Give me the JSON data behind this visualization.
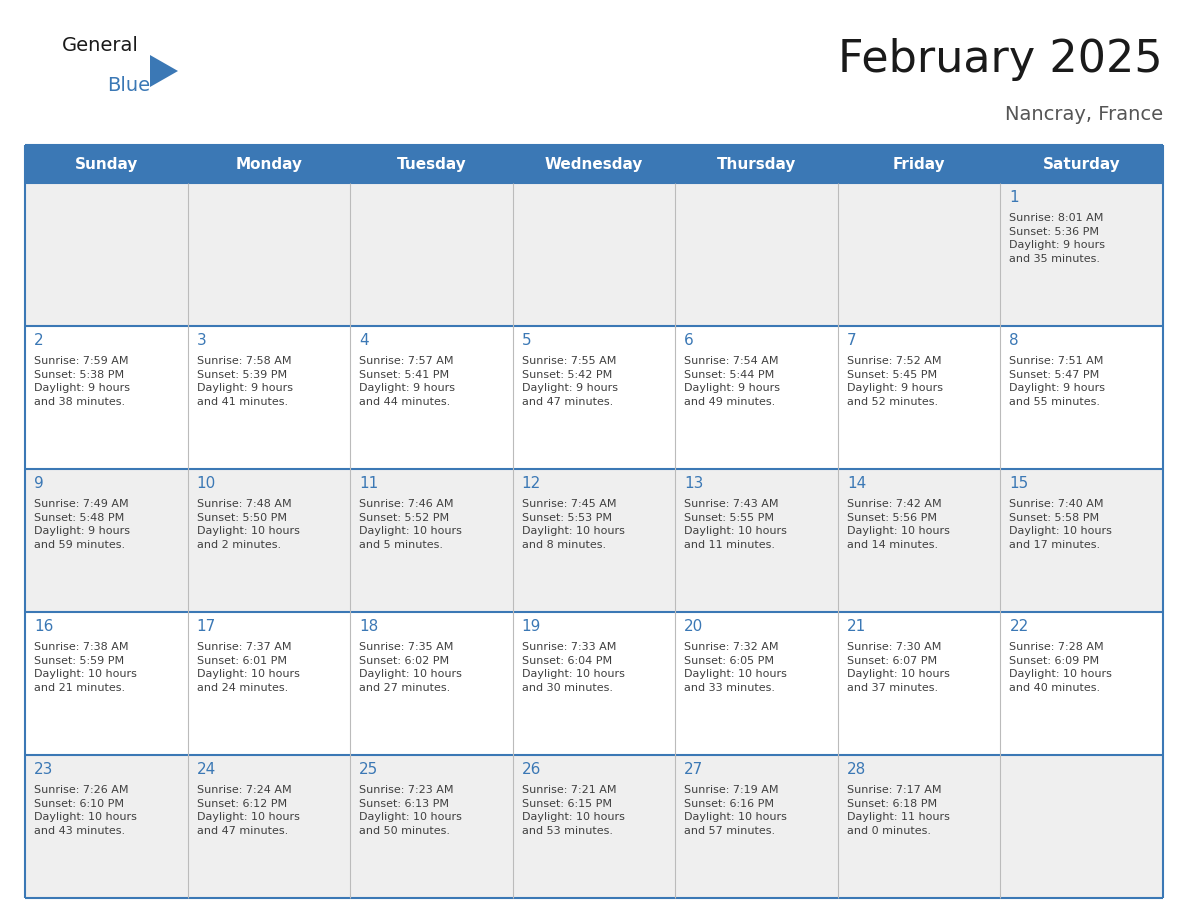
{
  "title": "February 2025",
  "subtitle": "Nancray, France",
  "days_of_week": [
    "Sunday",
    "Monday",
    "Tuesday",
    "Wednesday",
    "Thursday",
    "Friday",
    "Saturday"
  ],
  "header_bg_color": "#3B78B5",
  "header_text_color": "#FFFFFF",
  "cell_bg_light": "#EFEFEF",
  "cell_bg_white": "#FFFFFF",
  "border_color": "#3B78B5",
  "day_number_color": "#3B78B5",
  "cell_text_color": "#404040",
  "title_color": "#1a1a1a",
  "subtitle_color": "#555555",
  "logo_general_color": "#1a1a1a",
  "logo_blue_color": "#3B78B5",
  "weeks": [
    {
      "days": [
        {
          "date": null,
          "info": null
        },
        {
          "date": null,
          "info": null
        },
        {
          "date": null,
          "info": null
        },
        {
          "date": null,
          "info": null
        },
        {
          "date": null,
          "info": null
        },
        {
          "date": null,
          "info": null
        },
        {
          "date": 1,
          "info": "Sunrise: 8:01 AM\nSunset: 5:36 PM\nDaylight: 9 hours\nand 35 minutes."
        }
      ]
    },
    {
      "days": [
        {
          "date": 2,
          "info": "Sunrise: 7:59 AM\nSunset: 5:38 PM\nDaylight: 9 hours\nand 38 minutes."
        },
        {
          "date": 3,
          "info": "Sunrise: 7:58 AM\nSunset: 5:39 PM\nDaylight: 9 hours\nand 41 minutes."
        },
        {
          "date": 4,
          "info": "Sunrise: 7:57 AM\nSunset: 5:41 PM\nDaylight: 9 hours\nand 44 minutes."
        },
        {
          "date": 5,
          "info": "Sunrise: 7:55 AM\nSunset: 5:42 PM\nDaylight: 9 hours\nand 47 minutes."
        },
        {
          "date": 6,
          "info": "Sunrise: 7:54 AM\nSunset: 5:44 PM\nDaylight: 9 hours\nand 49 minutes."
        },
        {
          "date": 7,
          "info": "Sunrise: 7:52 AM\nSunset: 5:45 PM\nDaylight: 9 hours\nand 52 minutes."
        },
        {
          "date": 8,
          "info": "Sunrise: 7:51 AM\nSunset: 5:47 PM\nDaylight: 9 hours\nand 55 minutes."
        }
      ]
    },
    {
      "days": [
        {
          "date": 9,
          "info": "Sunrise: 7:49 AM\nSunset: 5:48 PM\nDaylight: 9 hours\nand 59 minutes."
        },
        {
          "date": 10,
          "info": "Sunrise: 7:48 AM\nSunset: 5:50 PM\nDaylight: 10 hours\nand 2 minutes."
        },
        {
          "date": 11,
          "info": "Sunrise: 7:46 AM\nSunset: 5:52 PM\nDaylight: 10 hours\nand 5 minutes."
        },
        {
          "date": 12,
          "info": "Sunrise: 7:45 AM\nSunset: 5:53 PM\nDaylight: 10 hours\nand 8 minutes."
        },
        {
          "date": 13,
          "info": "Sunrise: 7:43 AM\nSunset: 5:55 PM\nDaylight: 10 hours\nand 11 minutes."
        },
        {
          "date": 14,
          "info": "Sunrise: 7:42 AM\nSunset: 5:56 PM\nDaylight: 10 hours\nand 14 minutes."
        },
        {
          "date": 15,
          "info": "Sunrise: 7:40 AM\nSunset: 5:58 PM\nDaylight: 10 hours\nand 17 minutes."
        }
      ]
    },
    {
      "days": [
        {
          "date": 16,
          "info": "Sunrise: 7:38 AM\nSunset: 5:59 PM\nDaylight: 10 hours\nand 21 minutes."
        },
        {
          "date": 17,
          "info": "Sunrise: 7:37 AM\nSunset: 6:01 PM\nDaylight: 10 hours\nand 24 minutes."
        },
        {
          "date": 18,
          "info": "Sunrise: 7:35 AM\nSunset: 6:02 PM\nDaylight: 10 hours\nand 27 minutes."
        },
        {
          "date": 19,
          "info": "Sunrise: 7:33 AM\nSunset: 6:04 PM\nDaylight: 10 hours\nand 30 minutes."
        },
        {
          "date": 20,
          "info": "Sunrise: 7:32 AM\nSunset: 6:05 PM\nDaylight: 10 hours\nand 33 minutes."
        },
        {
          "date": 21,
          "info": "Sunrise: 7:30 AM\nSunset: 6:07 PM\nDaylight: 10 hours\nand 37 minutes."
        },
        {
          "date": 22,
          "info": "Sunrise: 7:28 AM\nSunset: 6:09 PM\nDaylight: 10 hours\nand 40 minutes."
        }
      ]
    },
    {
      "days": [
        {
          "date": 23,
          "info": "Sunrise: 7:26 AM\nSunset: 6:10 PM\nDaylight: 10 hours\nand 43 minutes."
        },
        {
          "date": 24,
          "info": "Sunrise: 7:24 AM\nSunset: 6:12 PM\nDaylight: 10 hours\nand 47 minutes."
        },
        {
          "date": 25,
          "info": "Sunrise: 7:23 AM\nSunset: 6:13 PM\nDaylight: 10 hours\nand 50 minutes."
        },
        {
          "date": 26,
          "info": "Sunrise: 7:21 AM\nSunset: 6:15 PM\nDaylight: 10 hours\nand 53 minutes."
        },
        {
          "date": 27,
          "info": "Sunrise: 7:19 AM\nSunset: 6:16 PM\nDaylight: 10 hours\nand 57 minutes."
        },
        {
          "date": 28,
          "info": "Sunrise: 7:17 AM\nSunset: 6:18 PM\nDaylight: 11 hours\nand 0 minutes."
        },
        {
          "date": null,
          "info": null
        }
      ]
    }
  ]
}
